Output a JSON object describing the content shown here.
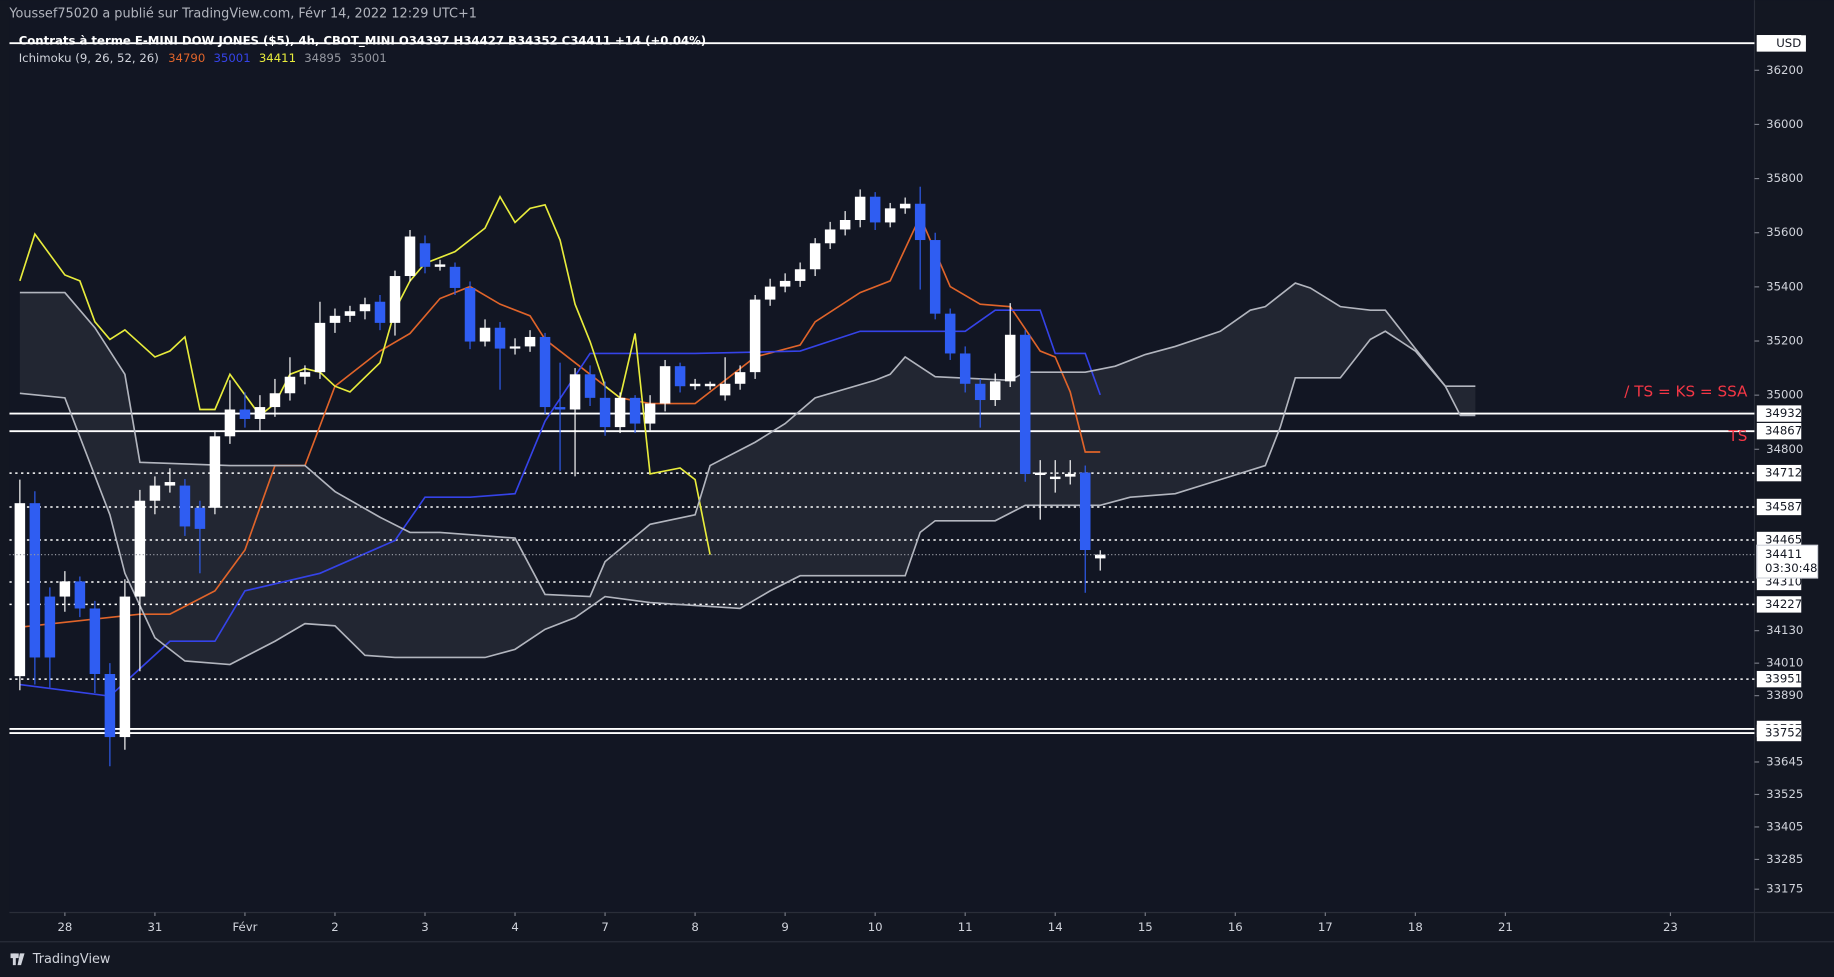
{
  "header": {
    "publisher": "Youssef75020 a publié sur TradingView.com, Févr 14, 2022 12:29 UTC+1",
    "instrument": "Contrats à terme E-MINI DOW JONES ($5), 4h, CBOT_MINI  O34397  H34427  B34352  C34411  +14 (+0.04%)",
    "indicator": "Ichimoku (9, 26, 52, 26)",
    "indicator_values": [
      {
        "text": "34790",
        "color": "#e0642a"
      },
      {
        "text": "35001",
        "color": "#3543e8"
      },
      {
        "text": "34411",
        "color": "#e8ec3c"
      },
      {
        "text": "34895",
        "color": "#9598a1"
      },
      {
        "text": "35001",
        "color": "#9598a1"
      }
    ],
    "currency": "USD"
  },
  "footer": "TradingView",
  "chart_data": {
    "type": "candlestick",
    "up_color": "#ffffff",
    "down_color": "#2f5df2",
    "open": [
      33962,
      34601,
      34256,
      34256,
      34312,
      34212,
      33970,
      33737,
      34256,
      34610,
      34666,
      34666,
      34584,
      34584,
      34848,
      34947,
      34912,
      34956,
      35007,
      35068,
      35085,
      35267,
      35293,
      35310,
      35345,
      35267,
      35440,
      35561,
      35474,
      35474,
      35396,
      35198,
      35249,
      35172,
      35180,
      35215,
      34956,
      34947,
      35077,
      34990,
      34882,
      34990,
      34895,
      34969,
      35107,
      35033,
      35033,
      34999,
      35042,
      35085,
      35353,
      35401,
      35422,
      35465,
      35561,
      35612,
      35647,
      35733,
      35638,
      35690,
      35707,
      35573,
      35301,
      35154,
      35042,
      34982,
      35051,
      35223,
      34705,
      34690,
      34699,
      34714,
      34397
    ],
    "high": [
      34688,
      34645,
      34290,
      34350,
      34330,
      34240,
      34010,
      34320,
      34650,
      34700,
      34730,
      34690,
      34610,
      34870,
      35055,
      35010,
      35000,
      35060,
      35140,
      35110,
      35345,
      35320,
      35330,
      35360,
      35370,
      35460,
      35610,
      35590,
      35500,
      35490,
      35420,
      35280,
      35270,
      35210,
      35240,
      35230,
      35120,
      35100,
      35110,
      35050,
      35010,
      35000,
      35000,
      35130,
      35120,
      35060,
      35050,
      35140,
      35110,
      35370,
      35430,
      35450,
      35490,
      35580,
      35640,
      35680,
      35760,
      35750,
      35710,
      35730,
      35770,
      35600,
      35320,
      35180,
      35060,
      35080,
      35340,
      35240,
      34760,
      34760,
      34760,
      34740,
      34427
    ],
    "low": [
      33910,
      33931,
      33920,
      34200,
      34180,
      33900,
      33629,
      33690,
      33980,
      34560,
      34640,
      34480,
      34342,
      34560,
      34820,
      34880,
      34870,
      34920,
      34980,
      35040,
      35060,
      35230,
      35270,
      35280,
      35240,
      35220,
      35420,
      35450,
      35460,
      35370,
      35170,
      35180,
      35020,
      35150,
      35160,
      34930,
      34720,
      34700,
      34960,
      34850,
      34860,
      34860,
      34870,
      34940,
      35010,
      35020,
      35020,
      34980,
      35020,
      35060,
      35330,
      35380,
      35400,
      35440,
      35540,
      35590,
      35620,
      35610,
      35620,
      35670,
      35390,
      35280,
      35130,
      35010,
      34880,
      34960,
      35030,
      34680,
      34540,
      34640,
      34670,
      34270,
      34352
    ],
    "close": [
      34601,
      34031,
      34031,
      34312,
      34212,
      33970,
      33737,
      34256,
      34610,
      34666,
      34679,
      34515,
      34506,
      34848,
      34947,
      34912,
      34956,
      35007,
      35068,
      35085,
      35267,
      35293,
      35310,
      35336,
      35267,
      35440,
      35586,
      35474,
      35483,
      35396,
      35198,
      35249,
      35172,
      35180,
      35215,
      34956,
      34947,
      35077,
      34990,
      34882,
      34990,
      34895,
      34969,
      35107,
      35033,
      35042,
      35042,
      35042,
      35085,
      35353,
      35401,
      35422,
      35465,
      35561,
      35612,
      35647,
      35733,
      35638,
      35690,
      35707,
      35573,
      35301,
      35154,
      35042,
      34982,
      35051,
      35223,
      34709,
      34714,
      34699,
      34709,
      34428,
      34411
    ],
    "lines": [
      {
        "role": "tenkan",
        "color": "#e0642a",
        "x": [
          0,
          8,
          10,
          13,
          15,
          17,
          19,
          21,
          24,
          26,
          28,
          30,
          32,
          34,
          35,
          38,
          40,
          42,
          45,
          46,
          49,
          52,
          53,
          56,
          58,
          60,
          62,
          64,
          66,
          68,
          69,
          70,
          71,
          72
        ],
        "values": [
          34143,
          34191,
          34191,
          34277,
          34428,
          34740,
          34740,
          35033,
          35163,
          35228,
          35357,
          35401,
          35336,
          35293,
          35206,
          35077,
          34990,
          34969,
          34969,
          35012,
          35141,
          35185,
          35271,
          35379,
          35422,
          35660,
          35401,
          35336,
          35327,
          35163,
          35141,
          35012,
          34790,
          34790
        ]
      },
      {
        "role": "kijun",
        "color": "#3543e8",
        "x": [
          0,
          6,
          10,
          13,
          15,
          20,
          25,
          27,
          30,
          33,
          35,
          38,
          45,
          52,
          56,
          60,
          63,
          65,
          68,
          69,
          71,
          72
        ],
        "values": [
          33931,
          33888,
          34091,
          34091,
          34277,
          34342,
          34463,
          34623,
          34623,
          34636,
          34904,
          35154,
          35154,
          35163,
          35236,
          35236,
          35236,
          35314,
          35314,
          35154,
          35154,
          35001
        ]
      },
      {
        "role": "chikou",
        "color": "#e8ec3c",
        "x": [
          0,
          1,
          3,
          4,
          5,
          6,
          7,
          9,
          10,
          11,
          12,
          13,
          14,
          16,
          17,
          18,
          19,
          20,
          21,
          22,
          24,
          25,
          26,
          27,
          29,
          31,
          32,
          33,
          34,
          35,
          36,
          37,
          38,
          39,
          40,
          41,
          42,
          44,
          45,
          46
        ],
        "values": [
          35422,
          35595,
          35444,
          35422,
          35271,
          35206,
          35241,
          35141,
          35163,
          35215,
          34947,
          34947,
          35077,
          34925,
          34969,
          35077,
          35098,
          35085,
          35033,
          35012,
          35120,
          35314,
          35422,
          35487,
          35530,
          35617,
          35733,
          35638,
          35690,
          35703,
          35573,
          35336,
          35198,
          35033,
          34990,
          35228,
          34709,
          34731,
          34688,
          34411
        ]
      },
      {
        "role": "span_a",
        "color": "#b2b5be",
        "x": [
          0,
          3,
          5,
          7,
          8,
          14,
          19,
          21,
          24,
          26,
          28,
          33,
          35,
          38,
          39,
          42,
          45,
          46,
          49,
          51,
          53,
          57,
          58,
          59,
          61,
          66,
          67,
          71,
          73,
          75,
          77,
          80,
          82,
          83,
          85,
          86,
          88,
          90,
          91,
          93,
          95,
          96,
          97
        ],
        "values": [
          35379,
          35379,
          35249,
          35077,
          34752,
          34740,
          34740,
          34644,
          34549,
          34493,
          34493,
          34472,
          34264,
          34256,
          34385,
          34523,
          34558,
          34740,
          34826,
          34895,
          34990,
          35055,
          35077,
          35141,
          35068,
          35055,
          35085,
          35085,
          35107,
          35150,
          35180,
          35236,
          35314,
          35327,
          35414,
          35396,
          35327,
          35314,
          35314,
          35172,
          35033,
          34925,
          34925
        ]
      },
      {
        "role": "span_b",
        "color": "#b2b5be",
        "x": [
          0,
          3,
          6,
          7,
          9,
          11,
          14,
          17,
          19,
          21,
          23,
          25,
          31,
          33,
          35,
          37,
          39,
          42,
          48,
          50,
          52,
          59,
          60,
          61,
          65,
          67,
          72,
          74,
          77,
          80,
          83,
          84,
          85,
          88,
          90,
          91,
          93,
          95,
          97
        ],
        "values": [
          35007,
          34990,
          34558,
          34342,
          34104,
          34018,
          34005,
          34091,
          34156,
          34148,
          34039,
          34031,
          34031,
          34061,
          34135,
          34178,
          34256,
          34234,
          34212,
          34277,
          34333,
          34333,
          34493,
          34536,
          34536,
          34593,
          34593,
          34623,
          34636,
          34688,
          34740,
          34882,
          35064,
          35064,
          35206,
          35236,
          35163,
          35033,
          35033
        ]
      }
    ],
    "cloud_color": "#ffffff",
    "levels": [
      {
        "value": 36300,
        "style": "solid"
      },
      {
        "value": 34932,
        "style": "solid"
      },
      {
        "value": 34867,
        "style": "solid"
      },
      {
        "value": 34712,
        "style": "dotted"
      },
      {
        "value": 34587,
        "style": "dotted"
      },
      {
        "value": 34465,
        "style": "dotted"
      },
      {
        "value": 34310,
        "style": "dotted"
      },
      {
        "value": 34227,
        "style": "dotted"
      },
      {
        "value": 33951,
        "style": "dotted"
      },
      {
        "value": 33767,
        "style": "solid"
      },
      {
        "value": 33752,
        "style": "solid"
      }
    ],
    "last": {
      "value": 34411,
      "countdown": "03:30:48"
    },
    "annotations": [
      {
        "text": "/ TS = KS = SSA",
        "color": "#f23645"
      },
      {
        "text": "TS",
        "color": "#f23645"
      }
    ],
    "xlim": [
      -0.7,
      115.6
    ],
    "xticks": [
      {
        "value": 3,
        "label": "28"
      },
      {
        "value": 9,
        "label": "31"
      },
      {
        "value": 15,
        "label": "Févr"
      },
      {
        "value": 21,
        "label": "2"
      },
      {
        "value": 27,
        "label": "3"
      },
      {
        "value": 33,
        "label": "4"
      },
      {
        "value": 39,
        "label": "7"
      },
      {
        "value": 45,
        "label": "8"
      },
      {
        "value": 51,
        "label": "9"
      },
      {
        "value": 57,
        "label": "10"
      },
      {
        "value": 63,
        "label": "11"
      },
      {
        "value": 69,
        "label": "14"
      },
      {
        "value": 75,
        "label": "15"
      },
      {
        "value": 81,
        "label": "16"
      },
      {
        "value": 87,
        "label": "17"
      },
      {
        "value": 93,
        "label": "18"
      },
      {
        "value": 99,
        "label": "21"
      },
      {
        "value": 110,
        "label": "23"
      }
    ],
    "ylim": [
      33089,
      36459
    ],
    "yticks": [
      36200,
      36000,
      35800,
      35600,
      35400,
      35200,
      35000,
      34800,
      34130,
      34010,
      33890,
      33645,
      33525,
      33405,
      33285,
      33175
    ]
  }
}
